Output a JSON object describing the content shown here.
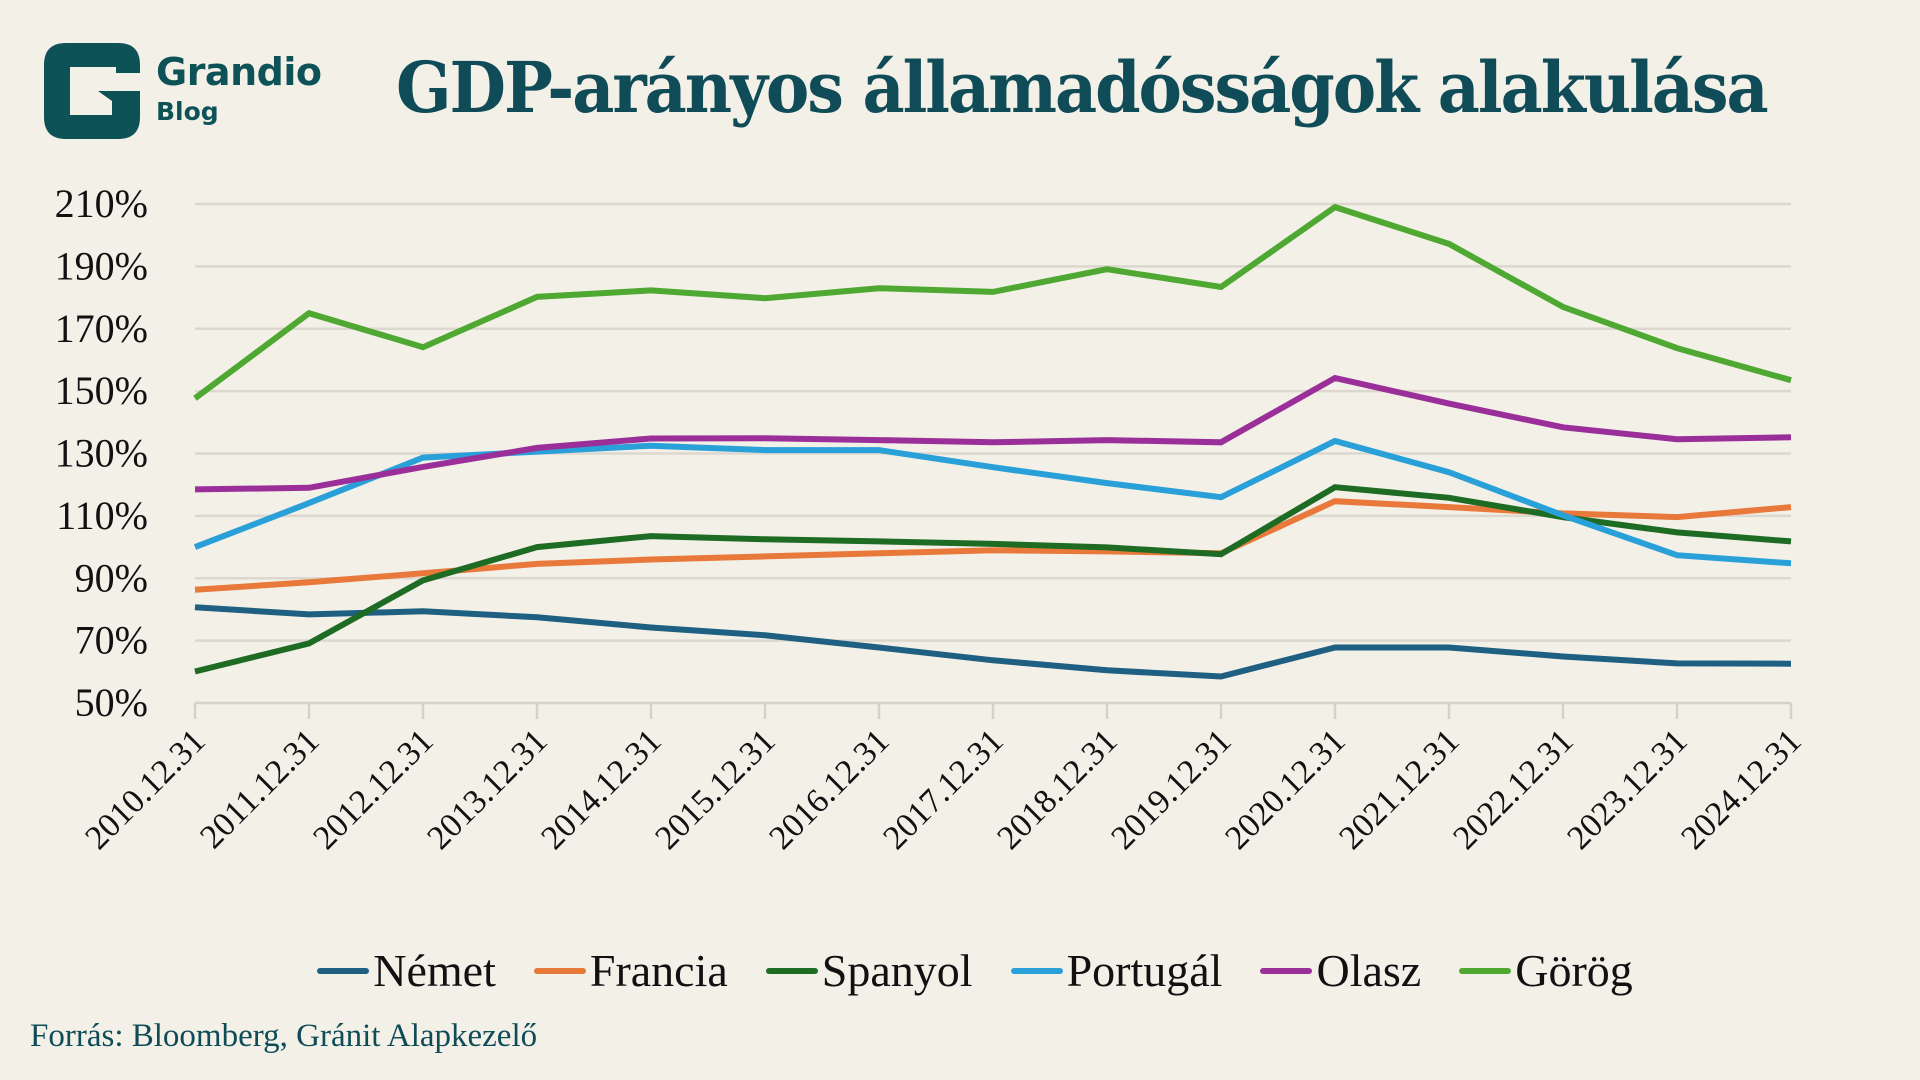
{
  "brand": {
    "name": "Grandio",
    "sub": "Blog",
    "color": "#0d5257"
  },
  "title": "GDP-arányos államadósságok alakulása",
  "source": "Forrás: Bloomberg, Gránit Alapkezelő",
  "chart_data": {
    "type": "line",
    "title": "GDP-arányos államadósságok alakulása",
    "xlabel": "",
    "ylabel": "",
    "ylim": [
      50,
      210
    ],
    "yticks": [
      50,
      70,
      90,
      110,
      130,
      150,
      170,
      190,
      210
    ],
    "ytick_labels": [
      "50%",
      "70%",
      "90%",
      "110%",
      "130%",
      "150%",
      "170%",
      "190%",
      "210%"
    ],
    "grid": true,
    "legend_position": "bottom",
    "categories": [
      "2010.12.31",
      "2011.12.31",
      "2012.12.31",
      "2013.12.31",
      "2014.12.31",
      "2015.12.31",
      "2016.12.31",
      "2017.12.31",
      "2018.12.31",
      "2019.12.31",
      "2020.12.31",
      "2021.12.31",
      "2022.12.31",
      "2023.12.31",
      "2024.12.31"
    ],
    "series": [
      {
        "name": "Német",
        "color": "#1f5f82",
        "values": [
          80.7,
          78.4,
          79.4,
          77.5,
          74.2,
          71.7,
          67.8,
          63.7,
          60.5,
          58.5,
          67.8,
          67.8,
          64.9,
          62.7,
          62.6
        ]
      },
      {
        "name": "Francia",
        "color": "#e8793a",
        "values": [
          86.3,
          88.7,
          91.6,
          94.6,
          96.0,
          97.0,
          98.0,
          99.0,
          98.6,
          98.0,
          114.7,
          112.8,
          110.8,
          109.6,
          112.8
        ]
      },
      {
        "name": "Spanyol",
        "color": "#1e6b24",
        "values": [
          60.1,
          69.1,
          89.3,
          100.0,
          103.5,
          102.5,
          101.8,
          101.0,
          99.9,
          97.7,
          119.2,
          115.8,
          109.6,
          104.7,
          101.8
        ]
      },
      {
        "name": "Portugál",
        "color": "#2aa0d8",
        "values": [
          100.0,
          114.1,
          128.7,
          130.6,
          132.5,
          131.1,
          131.1,
          125.6,
          120.5,
          116.0,
          134.0,
          124.0,
          110.2,
          97.4,
          94.8
        ]
      },
      {
        "name": "Olasz",
        "color": "#9b2f9a",
        "values": [
          118.5,
          119.0,
          125.7,
          131.8,
          134.8,
          134.9,
          134.3,
          133.6,
          134.3,
          133.6,
          154.2,
          146.0,
          138.4,
          134.6,
          135.2
        ]
      },
      {
        "name": "Görög",
        "color": "#4ea832",
        "values": [
          147.7,
          175.0,
          164.1,
          180.2,
          182.3,
          179.8,
          183.0,
          181.8,
          189.1,
          183.4,
          209.0,
          197.2,
          177.0,
          163.8,
          153.5
        ]
      }
    ]
  }
}
